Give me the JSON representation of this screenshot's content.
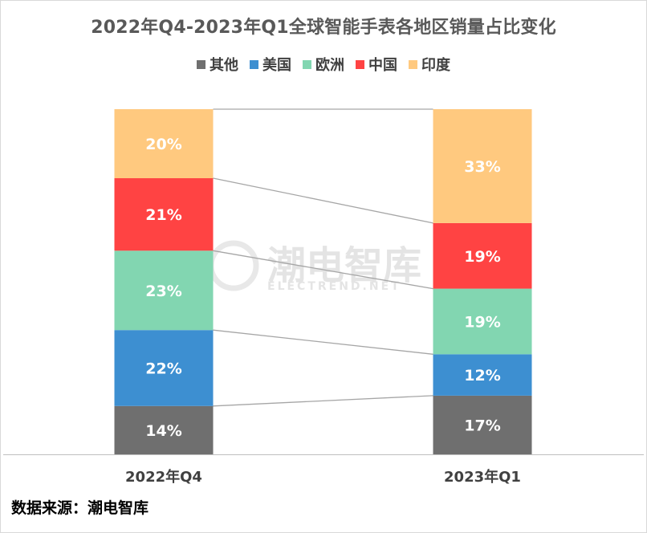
{
  "title": "2022年Q4-2023年Q1全球智能手表各地区销量占比变化",
  "source_text": "数据来源：潮电智库",
  "watermark": {
    "cn": "潮电智库",
    "en": "ELECTREND.NET"
  },
  "chart_data": {
    "type": "bar",
    "stacked": true,
    "normalized": true,
    "title": "2022年Q4-2023年Q1全球智能手表各地区销量占比变化",
    "xlabel": "",
    "ylabel": "",
    "categories": [
      "2022年Q4",
      "2023年Q1"
    ],
    "series": [
      {
        "name": "其他",
        "values": [
          14,
          17
        ],
        "labels": [
          "14%",
          "17%"
        ],
        "color": "#6f6f6f"
      },
      {
        "name": "美国",
        "values": [
          22,
          12
        ],
        "labels": [
          "22%",
          "12%"
        ],
        "color": "#3d8fd1"
      },
      {
        "name": "欧洲",
        "values": [
          23,
          19
        ],
        "labels": [
          "23%",
          "19%"
        ],
        "color": "#82d6b1"
      },
      {
        "name": "中国",
        "values": [
          21,
          19
        ],
        "labels": [
          "21%",
          "19%"
        ],
        "color": "#ff4343"
      },
      {
        "name": "印度",
        "values": [
          20,
          33
        ],
        "labels": [
          "20%",
          "33%"
        ],
        "color": "#ffc97f"
      }
    ],
    "legend_position": "top",
    "grid": false,
    "series_lines": true
  }
}
